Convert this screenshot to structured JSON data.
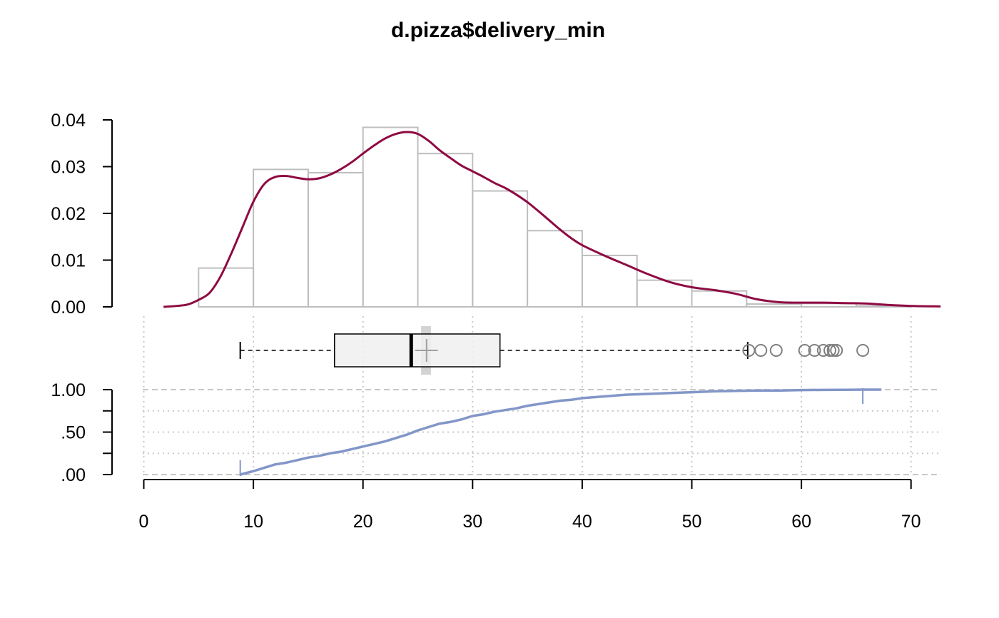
{
  "chart_data": [
    {
      "panel": "histogram-density",
      "type": "bar",
      "title": "d.pizza$delivery_min",
      "bins": [
        {
          "from": 5,
          "to": 10,
          "density": 0.0083
        },
        {
          "from": 10,
          "to": 15,
          "density": 0.0294
        },
        {
          "from": 15,
          "to": 20,
          "density": 0.0287
        },
        {
          "from": 20,
          "to": 25,
          "density": 0.0384
        },
        {
          "from": 25,
          "to": 30,
          "density": 0.0328
        },
        {
          "from": 30,
          "to": 35,
          "density": 0.0248
        },
        {
          "from": 35,
          "to": 40,
          "density": 0.0163
        },
        {
          "from": 40,
          "to": 45,
          "density": 0.011
        },
        {
          "from": 45,
          "to": 50,
          "density": 0.0057
        },
        {
          "from": 50,
          "to": 55,
          "density": 0.0034
        },
        {
          "from": 55,
          "to": 60,
          "density": 0.0006
        },
        {
          "from": 60,
          "to": 65,
          "density": 0.0007
        },
        {
          "from": 65,
          "to": 70,
          "density": 0.0002
        }
      ],
      "density_curve": {
        "x": [
          1.8,
          3,
          4,
          5,
          6,
          7,
          8,
          9,
          10,
          11,
          12,
          13,
          14,
          15,
          16,
          17,
          18,
          19,
          20,
          21,
          22,
          23,
          24,
          25,
          26,
          27,
          28,
          29,
          30,
          31,
          32,
          33,
          34,
          35,
          36,
          37,
          38,
          39,
          40,
          42,
          44,
          46,
          48,
          50,
          52,
          54,
          56,
          58,
          60,
          62,
          64,
          66,
          68,
          70,
          72.7
        ],
        "y": [
          0.0,
          0.0002,
          0.0005,
          0.0015,
          0.003,
          0.0065,
          0.0115,
          0.017,
          0.0225,
          0.0263,
          0.0278,
          0.028,
          0.0276,
          0.0273,
          0.0275,
          0.0283,
          0.0295,
          0.031,
          0.0328,
          0.0345,
          0.036,
          0.037,
          0.0374,
          0.037,
          0.0355,
          0.0335,
          0.0318,
          0.0302,
          0.029,
          0.0278,
          0.0265,
          0.0254,
          0.024,
          0.0224,
          0.0205,
          0.0185,
          0.0165,
          0.0147,
          0.0132,
          0.011,
          0.009,
          0.007,
          0.0053,
          0.0042,
          0.0036,
          0.0028,
          0.0016,
          0.001,
          0.0009,
          0.0009,
          0.0008,
          0.0007,
          0.0004,
          0.0002,
          0.0001
        ]
      },
      "y_ticks": [
        "0.00",
        "0.01",
        "0.02",
        "0.03",
        "0.04"
      ],
      "y_tick_values": [
        0,
        0.01,
        0.02,
        0.03,
        0.04
      ],
      "ylim": [
        0,
        0.04
      ],
      "xlim": [
        -0.1,
        72.7
      ],
      "colors": {
        "bars": "#bebebe",
        "density": "#8e0a42"
      }
    },
    {
      "panel": "boxplot",
      "type": "box",
      "min_whisker": 8.8,
      "q1": 17.4,
      "median": 24.4,
      "q3": 32.5,
      "max_whisker": 55.1,
      "mean": 25.8,
      "mean_ci": [
        25.3,
        26.2
      ],
      "outliers": [
        55.2,
        56.3,
        57.7,
        60.3,
        61.2,
        62.0,
        62.6,
        62.9,
        63.2,
        65.6
      ],
      "colors": {
        "box_fill": "#f0f0f0",
        "ci": "#d3d3d3",
        "outlier": "#808080"
      }
    },
    {
      "panel": "ecdf",
      "type": "line",
      "points": {
        "x": [
          8.8,
          10,
          11,
          12,
          13,
          14,
          15,
          16,
          17,
          18,
          19,
          20,
          21,
          22,
          23,
          24,
          25,
          26,
          27,
          28,
          29,
          30,
          31,
          32,
          33,
          34,
          35,
          36,
          37,
          38,
          39,
          40,
          42,
          44,
          46,
          48,
          50,
          52,
          54,
          56,
          58,
          60,
          62,
          64,
          65.6
        ],
        "y": [
          0.0,
          0.04,
          0.08,
          0.12,
          0.14,
          0.17,
          0.2,
          0.22,
          0.25,
          0.27,
          0.3,
          0.33,
          0.36,
          0.39,
          0.43,
          0.47,
          0.52,
          0.56,
          0.6,
          0.62,
          0.65,
          0.69,
          0.71,
          0.74,
          0.76,
          0.78,
          0.81,
          0.83,
          0.85,
          0.87,
          0.88,
          0.9,
          0.92,
          0.94,
          0.95,
          0.96,
          0.97,
          0.98,
          0.985,
          0.99,
          0.99,
          0.995,
          0.997,
          0.998,
          1.0
        ]
      },
      "y_ticks": [
        "1.00",
        ".50",
        ".00"
      ],
      "y_tick_values": [
        1,
        0.5,
        0
      ],
      "minor_y_tick_values": [
        0.75,
        0.25
      ],
      "ylim": [
        0,
        1
      ],
      "x_ticks": [
        "0",
        "10",
        "20",
        "30",
        "40",
        "50",
        "60",
        "70"
      ],
      "x_tick_values": [
        0,
        10,
        20,
        30,
        40,
        50,
        60,
        70
      ],
      "colors": {
        "line": "#8296c8"
      }
    }
  ]
}
